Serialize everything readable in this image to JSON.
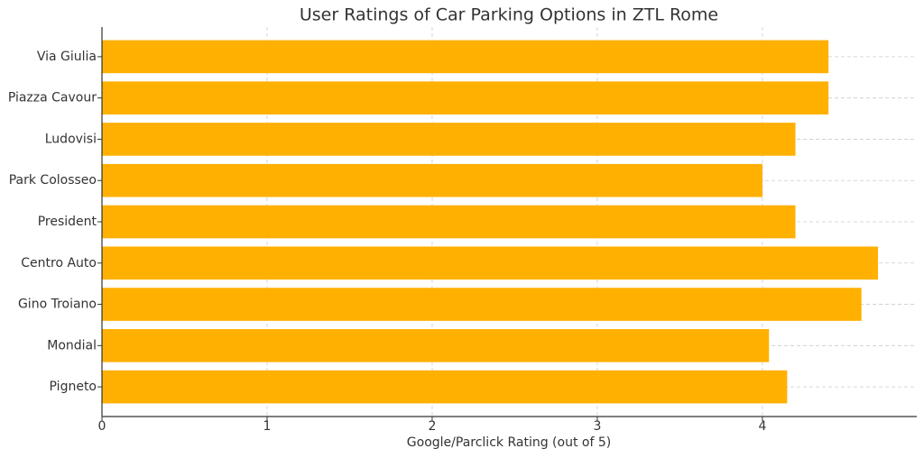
{
  "chart_data": {
    "type": "barh",
    "title": "User Ratings of Car Parking Options in ZTL Rome",
    "xlabel": "Google/Parclick Rating (out of 5)",
    "categories": [
      "Via Giulia",
      "Piazza Cavour",
      "Ludovisi",
      "Park Colosseo",
      "President",
      "Centro Auto",
      "Gino Troiano",
      "Mondial",
      "Pigneto"
    ],
    "values": [
      4.4,
      4.4,
      4.2,
      4.0,
      4.2,
      4.7,
      4.6,
      4.04,
      4.15
    ],
    "color": "#ffb000",
    "xlim": [
      0,
      4.935
    ],
    "xticks": [
      0,
      1,
      2,
      3,
      4
    ],
    "grid": true
  }
}
